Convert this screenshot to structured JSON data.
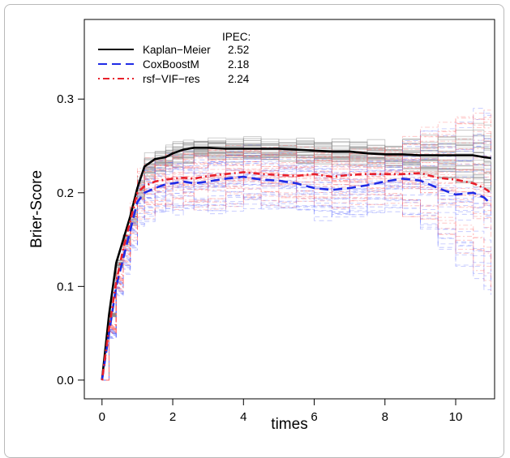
{
  "chart_data": {
    "type": "line",
    "title": "",
    "xlabel": "times",
    "ylabel": "Brier-Score",
    "xlim": [
      -0.5,
      11.1
    ],
    "ylim": [
      -0.02,
      0.385
    ],
    "xticks": [
      0,
      2,
      4,
      6,
      8,
      10
    ],
    "yticks": [
      0.0,
      0.1,
      0.2,
      0.3
    ],
    "xtick_labels": [
      "0",
      "2",
      "4",
      "6",
      "8",
      "10"
    ],
    "ytick_labels": [
      "0.0",
      "0.1",
      "0.2",
      "0.3"
    ],
    "grid": false,
    "legend": {
      "position": "top-left",
      "header": "IPEC:",
      "entries": [
        {
          "name": "Kaplan−Meier",
          "value": "2.52",
          "color": "#000000",
          "dash": "solid"
        },
        {
          "name": "CoxBoostM",
          "value": "2.18",
          "color": "#1f2be6",
          "dash": "dashed"
        },
        {
          "name": "rsf−VIF−res",
          "value": "2.24",
          "color": "#e8202b",
          "dash": "dotdash"
        }
      ]
    },
    "series": [
      {
        "name": "Kaplan−Meier",
        "color": "#000000",
        "x": [
          0,
          0.2,
          0.4,
          0.6,
          0.8,
          1.0,
          1.2,
          1.5,
          1.8,
          2.0,
          2.3,
          2.6,
          3.0,
          3.5,
          4.0,
          4.5,
          5.0,
          5.5,
          6.0,
          6.5,
          7.0,
          7.5,
          8.0,
          8.5,
          9.0,
          9.5,
          10.0,
          10.5,
          10.8,
          11.0
        ],
        "y": [
          0.0,
          0.07,
          0.125,
          0.15,
          0.175,
          0.205,
          0.228,
          0.236,
          0.238,
          0.242,
          0.246,
          0.248,
          0.248,
          0.247,
          0.247,
          0.247,
          0.247,
          0.246,
          0.245,
          0.244,
          0.244,
          0.242,
          0.241,
          0.241,
          0.24,
          0.24,
          0.24,
          0.24,
          0.238,
          0.237
        ]
      },
      {
        "name": "CoxBoostM",
        "color": "#1f2be6",
        "x": [
          0,
          0.2,
          0.4,
          0.6,
          0.8,
          1.0,
          1.2,
          1.5,
          1.8,
          2.0,
          2.3,
          2.6,
          3.0,
          3.5,
          4.0,
          4.5,
          5.0,
          5.5,
          6.0,
          6.5,
          7.0,
          7.5,
          8.0,
          8.5,
          9.0,
          9.5,
          10.0,
          10.5,
          10.8,
          11.0
        ],
        "y": [
          0.0,
          0.05,
          0.1,
          0.13,
          0.16,
          0.19,
          0.2,
          0.205,
          0.209,
          0.21,
          0.212,
          0.21,
          0.212,
          0.215,
          0.217,
          0.214,
          0.213,
          0.21,
          0.205,
          0.203,
          0.205,
          0.208,
          0.212,
          0.215,
          0.213,
          0.205,
          0.198,
          0.2,
          0.195,
          0.188
        ]
      },
      {
        "name": "rsf−VIF−res",
        "color": "#e8202b",
        "x": [
          0,
          0.2,
          0.4,
          0.6,
          0.8,
          1.0,
          1.2,
          1.5,
          1.8,
          2.0,
          2.3,
          2.6,
          3.0,
          3.5,
          4.0,
          4.5,
          5.0,
          5.5,
          6.0,
          6.5,
          7.0,
          7.5,
          8.0,
          8.5,
          9.0,
          9.5,
          10.0,
          10.5,
          10.8,
          11.0
        ],
        "y": [
          0.0,
          0.055,
          0.105,
          0.14,
          0.17,
          0.2,
          0.207,
          0.212,
          0.214,
          0.215,
          0.216,
          0.215,
          0.218,
          0.22,
          0.222,
          0.22,
          0.219,
          0.218,
          0.22,
          0.217,
          0.219,
          0.22,
          0.22,
          0.22,
          0.221,
          0.216,
          0.214,
          0.21,
          0.205,
          0.2
        ]
      }
    ]
  }
}
